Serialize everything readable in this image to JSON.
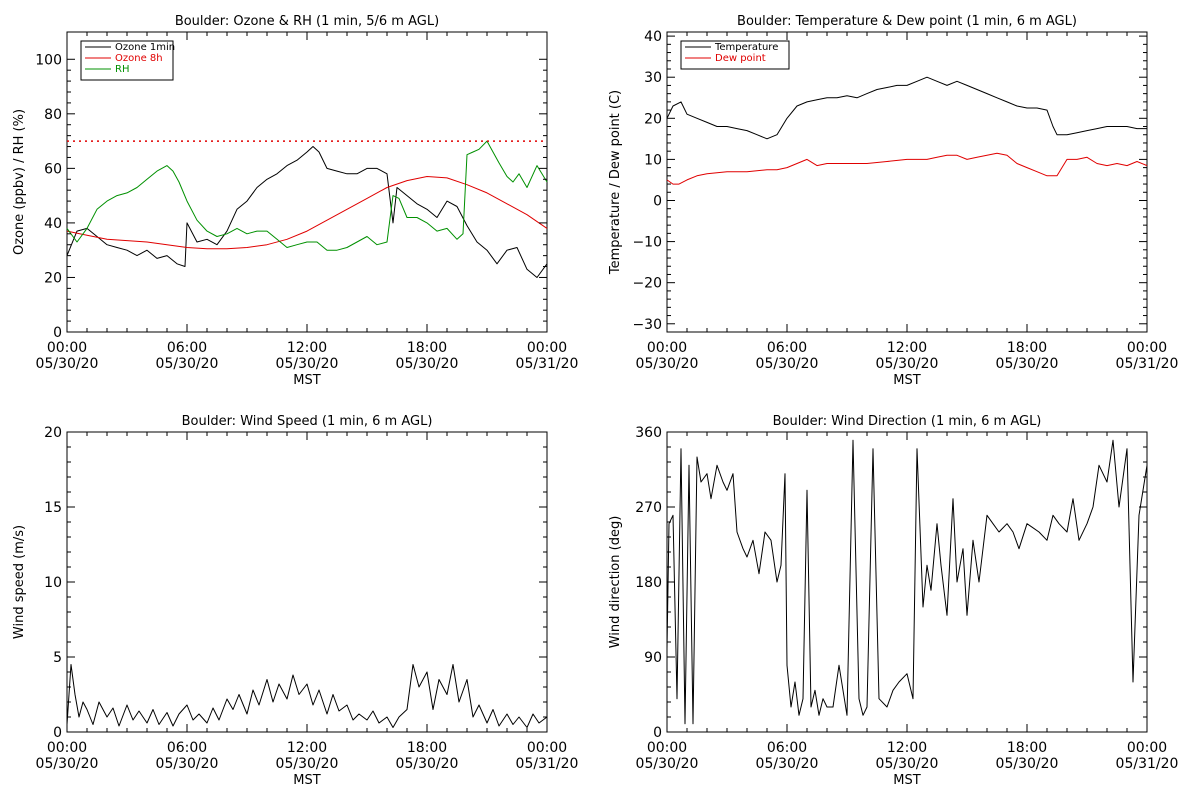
{
  "chart_data": [
    {
      "type": "line",
      "title": "Boulder: Ozone & RH (1 min, 5/6 m AGL)",
      "xlabel": "MST",
      "ylabel": "Ozone (ppbv) / RH (%)",
      "xlim": [
        0,
        24
      ],
      "ylim": [
        0,
        110
      ],
      "x_ticks": [
        {
          "h": 0,
          "top": "00:00",
          "bottom": "05/30/20"
        },
        {
          "h": 6,
          "top": "06:00",
          "bottom": "05/30/20"
        },
        {
          "h": 12,
          "top": "12:00",
          "bottom": "05/30/20"
        },
        {
          "h": 18,
          "top": "18:00",
          "bottom": "05/30/20"
        },
        {
          "h": 24,
          "top": "00:00",
          "bottom": "05/31/20"
        }
      ],
      "y_ticks": [
        {
          "v": 0,
          "label": "0"
        },
        {
          "v": 20,
          "label": "20"
        },
        {
          "v": 40,
          "label": "40"
        },
        {
          "v": 60,
          "label": "60"
        },
        {
          "v": 80,
          "label": "80"
        },
        {
          "v": 100,
          "label": "100"
        }
      ],
      "legend_position": "top-left",
      "reference_line": {
        "y": 70,
        "color": "#e00000",
        "style": "dotted"
      },
      "series": [
        {
          "name": "Ozone 1min",
          "color": "#000000",
          "x": [
            0,
            0.5,
            1,
            1.5,
            2,
            2.5,
            3,
            3.5,
            4,
            4.5,
            5,
            5.5,
            5.9,
            6,
            6.5,
            7,
            7.5,
            8,
            8.5,
            9,
            9.5,
            10,
            10.5,
            11,
            11.5,
            12,
            12.3,
            12.6,
            13,
            13.5,
            14,
            14.5,
            15,
            15.5,
            16,
            16.3,
            16.5,
            17,
            17.5,
            18,
            18.5,
            19,
            19.5,
            20,
            20.5,
            21,
            21.5,
            22,
            22.5,
            23,
            23.5,
            24
          ],
          "y": [
            28,
            37,
            38,
            35,
            32,
            31,
            30,
            28,
            30,
            27,
            28,
            25,
            24,
            40,
            33,
            34,
            32,
            37,
            45,
            48,
            53,
            56,
            58,
            61,
            63,
            66,
            68,
            66,
            60,
            59,
            58,
            58,
            60,
            60,
            58,
            40,
            53,
            50,
            47,
            45,
            42,
            48,
            46,
            39,
            33,
            30,
            25,
            30,
            31,
            23,
            20,
            25
          ]
        },
        {
          "name": "Ozone 8h",
          "color": "#e00000",
          "x": [
            0,
            1,
            2,
            3,
            4,
            5,
            6,
            7,
            8,
            9,
            10,
            11,
            12,
            13,
            14,
            15,
            16,
            17,
            18,
            19,
            20,
            21,
            22,
            23,
            24
          ],
          "y": [
            37,
            35.5,
            34,
            33.5,
            33,
            32,
            31,
            30.5,
            30.5,
            31,
            32,
            34,
            37,
            41,
            45,
            49,
            53,
            55.5,
            57,
            56.5,
            54,
            51,
            47,
            43,
            38
          ]
        },
        {
          "name": "RH",
          "color": "#009000",
          "x": [
            0,
            0.5,
            1,
            1.5,
            2,
            2.5,
            3,
            3.5,
            4,
            4.5,
            5,
            5.3,
            5.6,
            6,
            6.5,
            7,
            7.5,
            8,
            8.5,
            9,
            9.5,
            10,
            10.5,
            11,
            11.5,
            12,
            12.5,
            13,
            13.5,
            14,
            14.5,
            15,
            15.5,
            16,
            16.3,
            16.6,
            17,
            17.5,
            18,
            18.5,
            19,
            19.5,
            19.8,
            20,
            20.3,
            20.6,
            21,
            21.3,
            21.6,
            22,
            22.3,
            22.6,
            23,
            23.5,
            24
          ],
          "y": [
            38,
            33,
            38,
            45,
            48,
            50,
            51,
            53,
            56,
            59,
            61,
            59,
            55,
            48,
            41,
            37,
            35,
            36,
            38,
            36,
            37,
            37,
            34,
            31,
            32,
            33,
            33,
            30,
            30,
            31,
            33,
            35,
            32,
            33,
            50,
            49,
            42,
            42,
            40,
            37,
            38,
            34,
            36,
            65,
            66,
            67,
            70,
            66,
            62,
            57,
            55,
            58,
            53,
            61,
            55
          ]
        }
      ]
    },
    {
      "type": "line",
      "title": "Boulder: Temperature & Dew point (1 min, 6 m AGL)",
      "xlabel": "MST",
      "ylabel": "Temperature / Dew point (C)",
      "xlim": [
        0,
        24
      ],
      "ylim": [
        -32,
        41
      ],
      "x_ticks": [
        {
          "h": 0,
          "top": "00:00",
          "bottom": "05/30/20"
        },
        {
          "h": 6,
          "top": "06:00",
          "bottom": "05/30/20"
        },
        {
          "h": 12,
          "top": "12:00",
          "bottom": "05/30/20"
        },
        {
          "h": 18,
          "top": "18:00",
          "bottom": "05/30/20"
        },
        {
          "h": 24,
          "top": "00:00",
          "bottom": "05/31/20"
        }
      ],
      "y_ticks": [
        {
          "v": -30,
          "label": "−30"
        },
        {
          "v": -20,
          "label": "−20"
        },
        {
          "v": -10,
          "label": "−10"
        },
        {
          "v": 0,
          "label": "0"
        },
        {
          "v": 10,
          "label": "10"
        },
        {
          "v": 20,
          "label": "20"
        },
        {
          "v": 30,
          "label": "30"
        },
        {
          "v": 40,
          "label": "40"
        }
      ],
      "legend_position": "top-left",
      "series": [
        {
          "name": "Temperature",
          "color": "#000000",
          "x": [
            0,
            0.3,
            0.7,
            1,
            1.5,
            2,
            2.5,
            3,
            3.5,
            4,
            4.5,
            5,
            5.5,
            6,
            6.5,
            7,
            7.5,
            8,
            8.5,
            9,
            9.5,
            10,
            10.5,
            11,
            11.5,
            12,
            12.5,
            13,
            13.5,
            14,
            14.5,
            15,
            15.5,
            16,
            16.5,
            17,
            17.5,
            18,
            18.5,
            19,
            19.3,
            19.5,
            20,
            20.5,
            21,
            21.5,
            22,
            22.5,
            23,
            23.5,
            24
          ],
          "y": [
            20,
            23,
            24,
            21,
            20,
            19,
            18,
            18,
            17.5,
            17,
            16,
            15,
            16,
            20,
            23,
            24,
            24.5,
            25,
            25,
            25.5,
            25,
            26,
            27,
            27.5,
            28,
            28,
            29,
            30,
            29,
            28,
            29,
            28,
            27,
            26,
            25,
            24,
            23,
            22.5,
            22.5,
            22,
            18,
            16,
            16,
            16.5,
            17,
            17.5,
            18,
            18,
            18,
            17.5,
            17.5
          ]
        },
        {
          "name": "Dew point",
          "color": "#e00000",
          "x": [
            0,
            0.3,
            0.6,
            1,
            1.5,
            2,
            3,
            4,
            5,
            5.5,
            6,
            6.5,
            7,
            7.5,
            8,
            9,
            10,
            11,
            12,
            13,
            13.5,
            14,
            14.5,
            15,
            15.5,
            16,
            16.5,
            17,
            17.5,
            18,
            18.5,
            19,
            19.5,
            20,
            20.5,
            21,
            21.5,
            22,
            22.5,
            23,
            23.5,
            24
          ],
          "y": [
            5,
            4,
            4,
            5,
            6,
            6.5,
            7,
            7,
            7.5,
            7.5,
            8,
            9,
            10,
            8.5,
            9,
            9,
            9,
            9.5,
            10,
            10,
            10.5,
            11,
            11,
            10,
            10.5,
            11,
            11.5,
            11,
            9,
            8,
            7,
            6,
            6,
            10,
            10,
            10.5,
            9,
            8.5,
            9,
            8.5,
            9.5,
            8.5
          ]
        }
      ]
    },
    {
      "type": "line",
      "title": "Boulder: Wind Speed (1 min, 6 m AGL)",
      "xlabel": "MST",
      "ylabel": "Wind speed (m/s)",
      "xlim": [
        0,
        24
      ],
      "ylim": [
        0,
        20
      ],
      "x_ticks": [
        {
          "h": 0,
          "top": "00:00",
          "bottom": "05/30/20"
        },
        {
          "h": 6,
          "top": "06:00",
          "bottom": "05/30/20"
        },
        {
          "h": 12,
          "top": "12:00",
          "bottom": "05/30/20"
        },
        {
          "h": 18,
          "top": "18:00",
          "bottom": "05/30/20"
        },
        {
          "h": 24,
          "top": "00:00",
          "bottom": "05/31/20"
        }
      ],
      "y_ticks": [
        {
          "v": 0,
          "label": "0"
        },
        {
          "v": 5,
          "label": "5"
        },
        {
          "v": 10,
          "label": "10"
        },
        {
          "v": 15,
          "label": "15"
        },
        {
          "v": 20,
          "label": "20"
        }
      ],
      "series": [
        {
          "color": "#000000",
          "x": [
            0,
            0.2,
            0.4,
            0.6,
            0.8,
            1,
            1.3,
            1.6,
            2,
            2.3,
            2.6,
            3,
            3.3,
            3.6,
            4,
            4.3,
            4.6,
            5,
            5.3,
            5.6,
            6,
            6.3,
            6.6,
            7,
            7.3,
            7.6,
            8,
            8.3,
            8.6,
            9,
            9.3,
            9.6,
            10,
            10.3,
            10.6,
            11,
            11.3,
            11.6,
            12,
            12.3,
            12.6,
            13,
            13.3,
            13.6,
            14,
            14.3,
            14.6,
            15,
            15.3,
            15.6,
            16,
            16.3,
            16.6,
            17,
            17.3,
            17.6,
            18,
            18.3,
            18.6,
            19,
            19.3,
            19.6,
            20,
            20.3,
            20.6,
            21,
            21.3,
            21.6,
            22,
            22.3,
            22.6,
            23,
            23.3,
            23.6,
            24
          ],
          "y": [
            0.5,
            4.5,
            2.5,
            1,
            2,
            1.5,
            0.5,
            2,
            1,
            1.6,
            0.4,
            1.8,
            0.8,
            1.4,
            0.6,
            1.5,
            0.5,
            1.3,
            0.4,
            1.2,
            1.8,
            0.8,
            1.2,
            0.6,
            1.6,
            0.8,
            2.2,
            1.5,
            2.5,
            1.2,
            2.8,
            1.8,
            3.5,
            2,
            3.2,
            2.2,
            3.8,
            2.5,
            3.2,
            1.8,
            2.8,
            1.2,
            2.5,
            1.4,
            1.8,
            0.8,
            1.2,
            0.8,
            1.4,
            0.6,
            1,
            0.3,
            1,
            1.5,
            4.5,
            3,
            4,
            1.5,
            3.5,
            2.5,
            4.5,
            2,
            3.5,
            1,
            1.8,
            0.6,
            1.5,
            0.4,
            1.2,
            0.5,
            1,
            0.3,
            1.2,
            0.6,
            1
          ]
        }
      ]
    },
    {
      "type": "line",
      "title": "Boulder: Wind Direction (1 min, 6 m AGL)",
      "xlabel": "MST",
      "ylabel": "Wind direction (deg)",
      "xlim": [
        0,
        24
      ],
      "ylim": [
        0,
        360
      ],
      "x_ticks": [
        {
          "h": 0,
          "top": "00:00",
          "bottom": "05/30/20"
        },
        {
          "h": 6,
          "top": "06:00",
          "bottom": "05/30/20"
        },
        {
          "h": 12,
          "top": "12:00",
          "bottom": "05/30/20"
        },
        {
          "h": 18,
          "top": "18:00",
          "bottom": "05/30/20"
        },
        {
          "h": 24,
          "top": "00:00",
          "bottom": "05/31/20"
        }
      ],
      "y_ticks": [
        {
          "v": 0,
          "label": "0"
        },
        {
          "v": 90,
          "label": "90"
        },
        {
          "v": 180,
          "label": "180"
        },
        {
          "v": 270,
          "label": "270"
        },
        {
          "v": 360,
          "label": "360"
        }
      ],
      "series": [
        {
          "color": "#000000",
          "x": [
            0,
            0.1,
            0.3,
            0.5,
            0.7,
            0.9,
            1.1,
            1.3,
            1.5,
            1.7,
            2,
            2.2,
            2.5,
            2.8,
            3,
            3.3,
            3.5,
            3.8,
            4,
            4.3,
            4.6,
            4.9,
            5.2,
            5.5,
            5.7,
            5.9,
            6,
            6.2,
            6.4,
            6.6,
            6.8,
            7,
            7.2,
            7.4,
            7.6,
            7.8,
            8,
            8.3,
            8.6,
            9,
            9.3,
            9.6,
            9.8,
            10,
            10.3,
            10.6,
            11,
            11.3,
            11.6,
            12,
            12.3,
            12.5,
            12.8,
            13,
            13.2,
            13.5,
            13.7,
            14,
            14.3,
            14.5,
            14.8,
            15,
            15.3,
            15.6,
            16,
            16.3,
            16.6,
            17,
            17.3,
            17.6,
            18,
            18.3,
            18.6,
            19,
            19.3,
            19.6,
            20,
            20.3,
            20.6,
            21,
            21.3,
            21.6,
            22,
            22.3,
            22.6,
            23,
            23.3,
            23.6,
            24
          ],
          "y": [
            100,
            250,
            260,
            40,
            340,
            10,
            320,
            10,
            330,
            300,
            310,
            280,
            320,
            300,
            290,
            310,
            240,
            220,
            210,
            230,
            190,
            240,
            230,
            180,
            200,
            310,
            80,
            30,
            60,
            20,
            40,
            290,
            30,
            50,
            20,
            40,
            30,
            30,
            80,
            20,
            350,
            40,
            20,
            30,
            340,
            40,
            30,
            50,
            60,
            70,
            40,
            340,
            150,
            200,
            170,
            250,
            200,
            140,
            280,
            180,
            220,
            140,
            230,
            180,
            260,
            250,
            240,
            250,
            240,
            220,
            250,
            245,
            240,
            230,
            260,
            250,
            240,
            280,
            230,
            250,
            270,
            320,
            300,
            350,
            270,
            340,
            60,
            260,
            320
          ]
        }
      ]
    }
  ]
}
